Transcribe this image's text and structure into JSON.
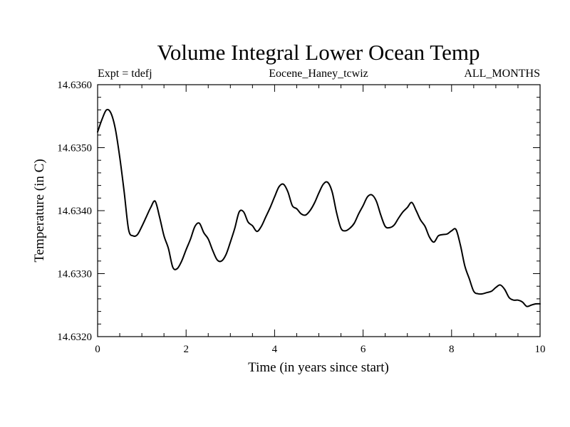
{
  "chart_data": {
    "type": "line",
    "title": "Volume Integral Lower Ocean Temp",
    "subtitle_left": "Expt = tdefj",
    "subtitle_center": "Eocene_Haney_tcwiz",
    "subtitle_right": "ALL_MONTHS",
    "xlabel": "Time (in years since start)",
    "ylabel": "Temperature (in C)",
    "xlim": [
      0,
      10
    ],
    "ylim": [
      14.632,
      14.636
    ],
    "xticks": [
      0,
      2,
      4,
      6,
      8,
      10
    ],
    "xtick_labels": [
      "0",
      "2",
      "4",
      "6",
      "8",
      "10"
    ],
    "yticks": [
      14.632,
      14.633,
      14.634,
      14.635,
      14.636
    ],
    "ytick_labels": [
      "14.6320",
      "14.6330",
      "14.6340",
      "14.6350",
      "14.6360"
    ],
    "grid": false,
    "series": [
      {
        "x": [
          0.0,
          0.1,
          0.2,
          0.3,
          0.4,
          0.5,
          0.6,
          0.7,
          0.8,
          0.9,
          1.0,
          1.1,
          1.2,
          1.3,
          1.4,
          1.5,
          1.6,
          1.7,
          1.8,
          1.9,
          2.0,
          2.1,
          2.2,
          2.3,
          2.4,
          2.5,
          2.6,
          2.7,
          2.8,
          2.9,
          3.0,
          3.1,
          3.2,
          3.3,
          3.4,
          3.5,
          3.6,
          3.7,
          3.8,
          3.9,
          4.0,
          4.1,
          4.2,
          4.3,
          4.4,
          4.5,
          4.6,
          4.7,
          4.8,
          4.9,
          5.0,
          5.1,
          5.2,
          5.3,
          5.4,
          5.5,
          5.6,
          5.7,
          5.8,
          5.9,
          6.0,
          6.1,
          6.2,
          6.3,
          6.4,
          6.5,
          6.6,
          6.7,
          6.8,
          6.9,
          7.0,
          7.1,
          7.2,
          7.3,
          7.4,
          7.5,
          7.6,
          7.7,
          7.8,
          7.9,
          8.0,
          8.1,
          8.2,
          8.3,
          8.4,
          8.5,
          8.6,
          8.7,
          8.8,
          8.9,
          9.0,
          9.1,
          9.2,
          9.3,
          9.4,
          9.5,
          9.6,
          9.7,
          9.8,
          9.9,
          10.0
        ],
        "values": [
          14.63525,
          14.63545,
          14.6356,
          14.63555,
          14.6353,
          14.63485,
          14.6343,
          14.6337,
          14.6336,
          14.63362,
          14.63375,
          14.6339,
          14.63405,
          14.63415,
          14.6339,
          14.6336,
          14.6334,
          14.6331,
          14.63308,
          14.6332,
          14.63338,
          14.63355,
          14.63375,
          14.6338,
          14.63365,
          14.63355,
          14.63337,
          14.63322,
          14.6332,
          14.6333,
          14.6335,
          14.63372,
          14.63398,
          14.63398,
          14.63382,
          14.63376,
          14.63367,
          14.63375,
          14.6339,
          14.63405,
          14.63422,
          14.63438,
          14.63442,
          14.6343,
          14.63408,
          14.63403,
          14.63395,
          14.63393,
          14.634,
          14.63412,
          14.63428,
          14.63442,
          14.63445,
          14.6343,
          14.63397,
          14.63372,
          14.63368,
          14.63372,
          14.6338,
          14.63395,
          14.63408,
          14.63422,
          14.63425,
          14.63415,
          14.63393,
          14.63375,
          14.63373,
          14.63377,
          14.63388,
          14.63398,
          14.63405,
          14.63413,
          14.634,
          14.63385,
          14.63375,
          14.63358,
          14.6335,
          14.6336,
          14.63362,
          14.63363,
          14.63368,
          14.6337,
          14.63345,
          14.63312,
          14.63292,
          14.63272,
          14.63268,
          14.63268,
          14.6327,
          14.63272,
          14.63278,
          14.63282,
          14.63275,
          14.63262,
          14.63258,
          14.63258,
          14.63255,
          14.63248,
          14.6325,
          14.63252,
          14.63252
        ]
      }
    ]
  }
}
